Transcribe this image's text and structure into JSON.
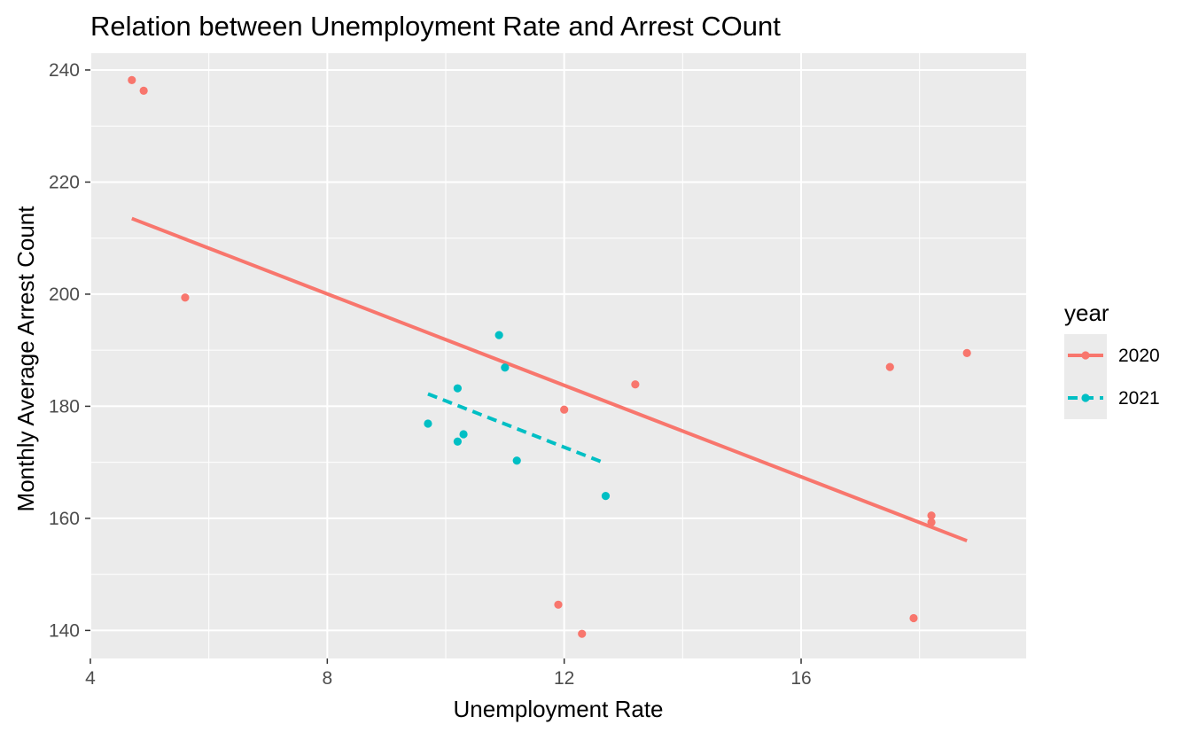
{
  "chart_data": {
    "type": "scatter",
    "title": "Relation between Unemployment Rate and Arrest COunt",
    "xlabel": "Unemployment Rate",
    "ylabel": "Monthly Average Arrest Count",
    "xlim": [
      4,
      19.8
    ],
    "ylim": [
      135,
      243
    ],
    "xticks": [
      4,
      8,
      12,
      16
    ],
    "yticks": [
      140,
      160,
      180,
      200,
      220,
      240
    ],
    "grid": true,
    "legend": {
      "title": "year",
      "position": "right"
    },
    "series": [
      {
        "name": "2020",
        "color": "#F8766D",
        "line_style": "solid",
        "points": [
          {
            "x": 4.7,
            "y": 238.2
          },
          {
            "x": 4.9,
            "y": 236.3
          },
          {
            "x": 5.6,
            "y": 199.4
          },
          {
            "x": 11.9,
            "y": 144.6
          },
          {
            "x": 12.0,
            "y": 179.4
          },
          {
            "x": 12.3,
            "y": 139.4
          },
          {
            "x": 13.2,
            "y": 183.9
          },
          {
            "x": 17.5,
            "y": 187.0
          },
          {
            "x": 17.9,
            "y": 142.2
          },
          {
            "x": 18.2,
            "y": 160.5
          },
          {
            "x": 18.2,
            "y": 159.3
          },
          {
            "x": 18.8,
            "y": 189.5
          }
        ],
        "fit": {
          "x0": 4.7,
          "y0": 213.5,
          "x1": 18.8,
          "y1": 156.0
        }
      },
      {
        "name": "2021",
        "color": "#00BFC4",
        "line_style": "dashed",
        "points": [
          {
            "x": 9.7,
            "y": 176.9
          },
          {
            "x": 10.2,
            "y": 183.2
          },
          {
            "x": 10.2,
            "y": 173.7
          },
          {
            "x": 10.3,
            "y": 175.0
          },
          {
            "x": 10.9,
            "y": 192.7
          },
          {
            "x": 11.0,
            "y": 186.9
          },
          {
            "x": 11.2,
            "y": 170.3
          },
          {
            "x": 12.7,
            "y": 164.0
          }
        ],
        "fit": {
          "x0": 9.7,
          "y0": 182.2,
          "x1": 12.7,
          "y1": 169.8
        }
      }
    ]
  }
}
